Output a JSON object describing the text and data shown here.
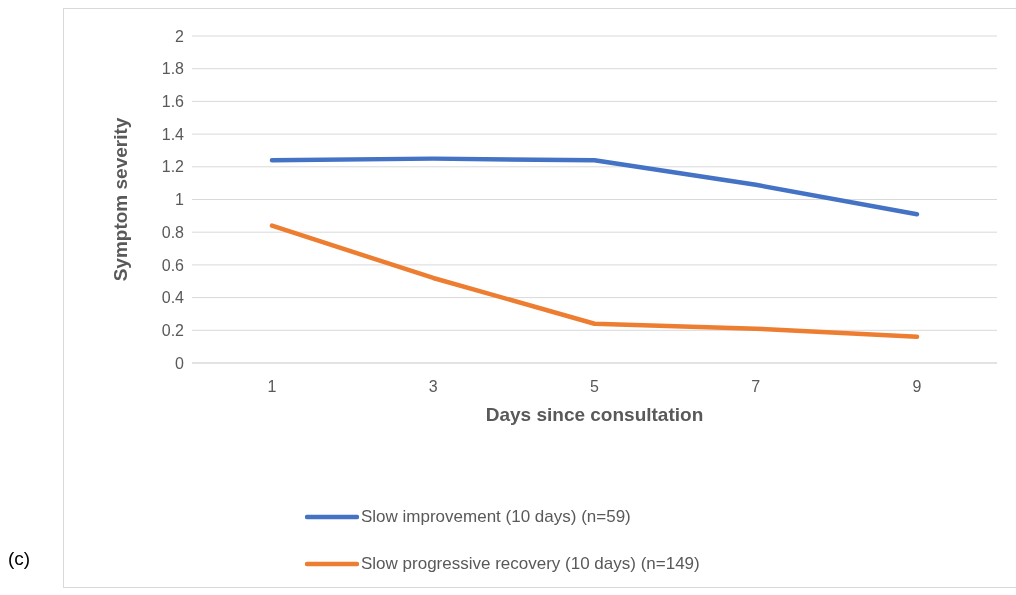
{
  "chart_data": {
    "type": "line",
    "xlabel": "Days since consultation",
    "ylabel": "Symptom severity",
    "categories": [
      "1",
      "3",
      "5",
      "7",
      "9"
    ],
    "series": [
      {
        "name": "Slow improvement (10 days) (n=59)",
        "color": "#4472c4",
        "values": [
          1.24,
          1.25,
          1.24,
          1.09,
          0.91
        ]
      },
      {
        "name": "Slow progressive recovery (10 days) (n=149)",
        "color": "#ed7d31",
        "values": [
          0.84,
          0.52,
          0.24,
          0.21,
          0.16
        ]
      }
    ],
    "ylim": [
      0,
      2
    ],
    "yticks": [
      0,
      0.2,
      0.4,
      0.6,
      0.8,
      1,
      1.2,
      1.4,
      1.6,
      1.8,
      2
    ],
    "grid": "y",
    "legend": "bottom",
    "marker": "none",
    "line_style": "solid",
    "annotations": [
      "(c)"
    ]
  }
}
